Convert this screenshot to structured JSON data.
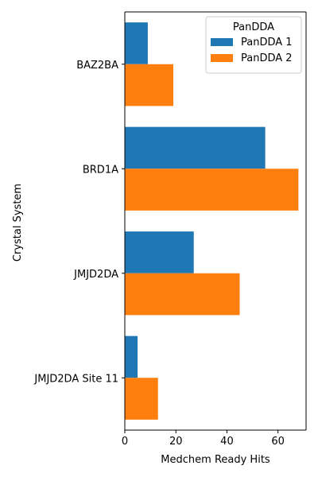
{
  "chart_data": {
    "type": "bar",
    "orientation": "horizontal",
    "xlabel": "Medchem Ready Hits",
    "ylabel": "Crystal System",
    "xlim": [
      0,
      71
    ],
    "xticks": [
      0,
      20,
      40,
      60
    ],
    "categories": [
      "BAZ2BA",
      "BRD1A",
      "JMJD2DA",
      "JMJD2DA Site 11"
    ],
    "series": [
      {
        "name": "PanDDA 1",
        "color": "#1f77b4",
        "values": [
          9,
          55,
          27,
          5
        ]
      },
      {
        "name": "PanDDA 2",
        "color": "#ff7f0e",
        "values": [
          19,
          68,
          45,
          13
        ]
      }
    ],
    "legend": {
      "title": "PanDDA",
      "position": "top-right"
    },
    "grid": false
  }
}
